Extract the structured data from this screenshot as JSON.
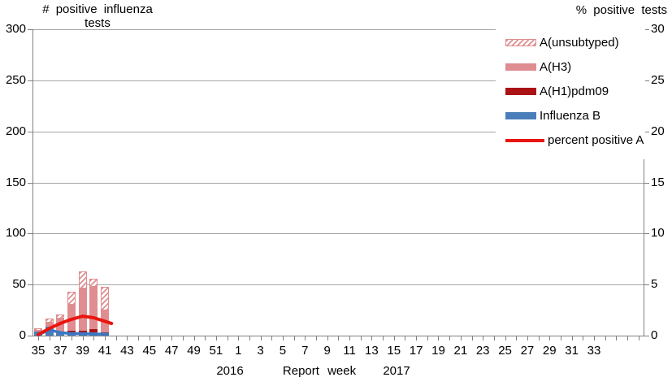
{
  "titles": {
    "left_axis_line1": "# positive influenza",
    "left_axis_line2": "tests",
    "right_axis": "% positive tests"
  },
  "x_axis": {
    "title": "Report week",
    "year_2016": "2016",
    "year_2017": "2017",
    "tick_labels": [
      "35",
      "37",
      "39",
      "41",
      "43",
      "45",
      "47",
      "49",
      "51",
      "1",
      "3",
      "5",
      "7",
      "9",
      "11",
      "13",
      "15",
      "17",
      "19",
      "21",
      "23",
      "25",
      "27",
      "29",
      "31",
      "33"
    ]
  },
  "y_axis_left": {
    "labels": [
      "0",
      "50",
      "100",
      "150",
      "200",
      "250",
      "300"
    ],
    "min": 0,
    "max": 300,
    "step": 50
  },
  "y_axis_right": {
    "labels": [
      "0",
      "5",
      "10",
      "15",
      "20",
      "25",
      "30"
    ],
    "min": 0,
    "max": 30,
    "step": 5
  },
  "legend": {
    "items": [
      {
        "label": "A(unsubtyped)",
        "swatch": "hatch",
        "color": "#df8d90"
      },
      {
        "label": "A(H3)",
        "swatch": "solid",
        "color": "#df8d90"
      },
      {
        "label": "A(H1)pdm09",
        "swatch": "solid",
        "color": "#aa1216"
      },
      {
        "label": "Influenza B",
        "swatch": "solid",
        "color": "#4a7ebb"
      },
      {
        "label": "percent positive A",
        "swatch": "line",
        "color": "#ea150e"
      }
    ]
  },
  "colors": {
    "a_unsubtyped_hatch": "#df8d90",
    "a_h3": "#df8d90",
    "a_h1pdm09": "#aa1216",
    "influenza_b": "#4a7ebb",
    "percent_positive_a_line": "#ea150e",
    "unlabeled_blue_line": "#3a77c2",
    "gridline": "#a6a6a6",
    "axis": "#808080",
    "text": "#000000"
  },
  "chart_data": {
    "type": "combo_bar_line",
    "title": "",
    "xlabel": "Report week",
    "left_axis": {
      "label": "# positive influenza tests",
      "range": [
        0,
        300
      ],
      "step": 50
    },
    "right_axis": {
      "label": "% positive tests",
      "range": [
        0,
        30
      ],
      "step": 5
    },
    "x_weeks_with_bars": [
      35,
      36,
      37,
      38,
      39,
      40,
      41
    ],
    "x_axis_week_labels_every_2": true,
    "bar_stack_order_bottom_to_top": [
      "Influenza B",
      "A(H1)pdm09",
      "A(H3)",
      "A(unsubtyped)"
    ],
    "series": [
      {
        "name": "A(unsubtyped)",
        "type": "bar",
        "axis": "left",
        "values": [
          2,
          4,
          4,
          13,
          17,
          8,
          23
        ]
      },
      {
        "name": "A(H3)",
        "type": "bar",
        "axis": "left",
        "values": [
          1,
          4,
          13,
          25,
          41,
          42,
          22
        ]
      },
      {
        "name": "A(H1)pdm09",
        "type": "bar",
        "axis": "left",
        "values": [
          0,
          0,
          1,
          2,
          3,
          3,
          1
        ]
      },
      {
        "name": "Influenza B",
        "type": "bar",
        "axis": "left",
        "values": [
          4,
          9,
          3,
          3,
          2,
          3,
          2
        ]
      },
      {
        "name": "percent positive A",
        "type": "line",
        "axis": "right",
        "values": [
          0.1,
          0.7,
          1.2,
          1.6,
          1.9,
          1.75,
          1.4
        ]
      },
      {
        "name": "unlabeled blue line",
        "type": "line",
        "axis": "right",
        "values": [
          0.1,
          0.55,
          0.3,
          0.2,
          0.2,
          0.15,
          0.15
        ]
      }
    ]
  }
}
